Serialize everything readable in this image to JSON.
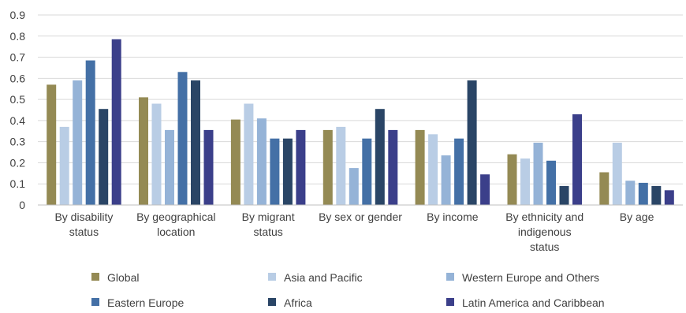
{
  "chart_data": {
    "type": "bar",
    "title": "",
    "xlabel": "",
    "ylabel": "",
    "ylim": [
      0,
      0.9
    ],
    "yticks": [
      "0",
      "0.1",
      "0.2",
      "0.3",
      "0.4",
      "0.5",
      "0.6",
      "0.7",
      "0.8",
      "0.9"
    ],
    "grid": true,
    "legend": "bottom",
    "categories": [
      [
        "By disability",
        "status"
      ],
      [
        "By geographical",
        "location"
      ],
      [
        "By migrant",
        "status"
      ],
      [
        "By sex or gender"
      ],
      [
        "By income"
      ],
      [
        "By ethnicity and",
        "indigenous",
        "status"
      ],
      [
        "By age"
      ]
    ],
    "series": [
      {
        "name": "Global",
        "color": "#948a54",
        "values": [
          0.57,
          0.51,
          0.405,
          0.355,
          0.355,
          0.24,
          0.155
        ]
      },
      {
        "name": "Asia and Pacific",
        "color": "#b9cde5",
        "values": [
          0.37,
          0.48,
          0.48,
          0.37,
          0.335,
          0.22,
          0.295
        ]
      },
      {
        "name": "Western Europe and Others",
        "color": "#95b3d7",
        "values": [
          0.59,
          0.355,
          0.41,
          0.175,
          0.235,
          0.295,
          0.115
        ]
      },
      {
        "name": "Eastern Europe",
        "color": "#4470a6",
        "values": [
          0.685,
          0.63,
          0.315,
          0.315,
          0.315,
          0.21,
          0.105
        ]
      },
      {
        "name": "Africa",
        "color": "#2a4566",
        "values": [
          0.455,
          0.59,
          0.315,
          0.455,
          0.59,
          0.09,
          0.09
        ]
      },
      {
        "name": "Latin America and Caribbean",
        "color": "#3b3f8a",
        "values": [
          0.785,
          0.355,
          0.355,
          0.355,
          0.145,
          0.43,
          0.07
        ]
      }
    ]
  }
}
